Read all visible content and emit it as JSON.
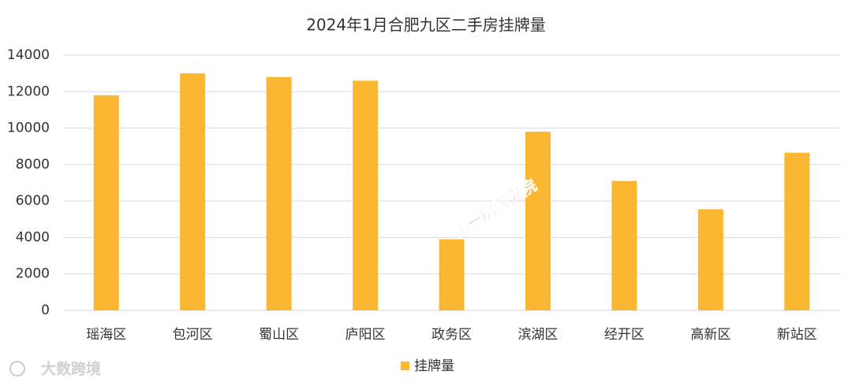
{
  "chart_data": {
    "type": "bar",
    "title": "2024年1月合肥九区二手房挂牌量",
    "categories": [
      "瑶海区",
      "包河区",
      "蜀山区",
      "庐阳区",
      "政务区",
      "滨湖区",
      "经开区",
      "高新区",
      "新站区"
    ],
    "series": [
      {
        "name": "挂牌量",
        "color": "#fbb731",
        "values": [
          11800,
          13000,
          12800,
          12600,
          3900,
          9800,
          7100,
          5550,
          8650
        ]
      }
    ],
    "ylim": [
      0,
      14000
    ],
    "yticks": [
      0,
      2000,
      4000,
      6000,
      8000,
      10000,
      12000,
      14000
    ],
    "grid": true,
    "legend": "bottom",
    "annotations": [
      "第一房研究院",
      "大数跨境"
    ]
  }
}
